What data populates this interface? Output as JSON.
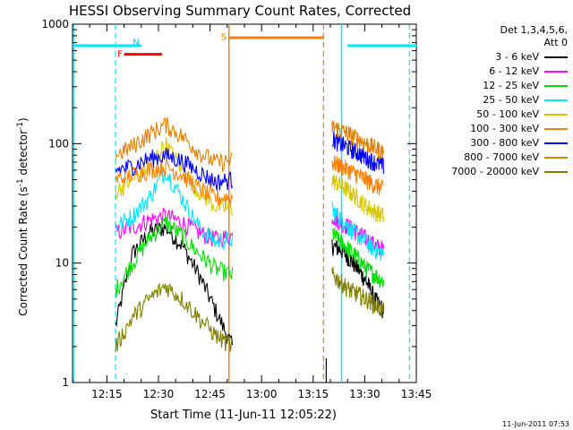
{
  "chart_data": {
    "type": "line",
    "title": "HESSI Observing Summary Count Rates, Corrected",
    "xlabel": "Start Time (11-Jun-11 12:05:22)",
    "ylabel_prefix": "Corrected Count Rate (s",
    "ylabel_sup": "-1",
    "ylabel_mid": " detector",
    "ylabel_sup2": "-1",
    "ylabel_suffix": ")",
    "timestamp": "11-Jun-2011 07:53",
    "yscale": "log",
    "ylim": [
      1,
      1000
    ],
    "xlim_minutes": [
      0,
      100
    ],
    "x_ticks": [
      {
        "t": 10,
        "label": "12:15"
      },
      {
        "t": 25,
        "label": "12:30"
      },
      {
        "t": 40,
        "label": "12:45"
      },
      {
        "t": 55,
        "label": "13:00"
      },
      {
        "t": 70,
        "label": "13:15"
      },
      {
        "t": 85,
        "label": "13:30"
      },
      {
        "t": 100,
        "label": "13:45"
      }
    ],
    "y_ticks": [
      {
        "v": 1,
        "label": "1"
      },
      {
        "v": 10,
        "label": "10"
      },
      {
        "v": 100,
        "label": "100"
      },
      {
        "v": 1000,
        "label": "1000"
      }
    ],
    "legend_title1": "Det 1,3,4,5,6,",
    "legend_title2": "Att 0",
    "series": [
      {
        "name": "3 - 6 keV",
        "color": "#000000"
      },
      {
        "name": "6 - 12 keV",
        "color": "#ff00ff"
      },
      {
        "name": "12 - 25 keV",
        "color": "#00e000"
      },
      {
        "name": "25 - 50 keV",
        "color": "#00e5ff"
      },
      {
        "name": "50 - 100 keV",
        "color": "#d8c800"
      },
      {
        "name": "100 - 300 keV",
        "color": "#ff7f00"
      },
      {
        "name": "300 - 800 keV",
        "color": "#0000ff"
      },
      {
        "name": "800 - 7000 keV",
        "color": "#e08000"
      },
      {
        "name": "7000 - 20000 keV",
        "color": "#808000"
      }
    ],
    "segments": [
      {
        "t0": 12.5,
        "t1": 46.5
      },
      {
        "t0": 75.5,
        "t1": 90.5
      }
    ],
    "series_levels": {
      "3 - 6 keV": {
        "seg1": [
          3,
          12,
          18,
          20,
          14,
          8,
          4,
          2
        ],
        "seg2": [
          14,
          13,
          11,
          9,
          7,
          5,
          4
        ]
      },
      "6 - 12 keV": {
        "seg1": [
          18,
          20,
          23,
          25,
          22,
          18,
          16,
          17
        ],
        "seg2": [
          25,
          22,
          20,
          18,
          16,
          14,
          13
        ]
      },
      "12 - 25 keV": {
        "seg1": [
          6,
          10,
          16,
          22,
          17,
          12,
          9,
          8
        ],
        "seg2": [
          18,
          15,
          13,
          11,
          9,
          8,
          7
        ]
      },
      "25 - 50 keV": {
        "seg1": [
          20,
          25,
          35,
          60,
          35,
          20,
          15,
          16
        ],
        "seg2": [
          28,
          24,
          20,
          17,
          15,
          13,
          12
        ]
      },
      "50 - 100 keV": {
        "seg1": [
          40,
          50,
          65,
          100,
          60,
          40,
          30,
          28
        ],
        "seg2": [
          50,
          45,
          40,
          35,
          30,
          27,
          25
        ]
      },
      "100 - 300 keV": {
        "seg1": [
          50,
          55,
          60,
          65,
          55,
          42,
          35,
          36
        ],
        "seg2": [
          70,
          65,
          60,
          55,
          50,
          45,
          42
        ]
      },
      "300 - 800 keV": {
        "seg1": [
          60,
          65,
          75,
          80,
          72,
          58,
          48,
          50
        ],
        "seg2": [
          110,
          100,
          92,
          84,
          76,
          70,
          65
        ]
      },
      "800 - 7000 keV": {
        "seg1": [
          80,
          95,
          120,
          145,
          115,
          85,
          70,
          72
        ],
        "seg2": [
          140,
          130,
          120,
          110,
          100,
          92,
          86
        ]
      },
      "7000 - 20000 keV": {
        "seg1": [
          2,
          3.5,
          5,
          6.5,
          5,
          3.5,
          2.5,
          2
        ],
        "seg2": [
          8,
          7,
          6,
          5.5,
          5,
          4.5,
          4
        ]
      }
    },
    "markers": {
      "cyan_solid_lines": [
        0,
        78
      ],
      "cyan_dashed_lines": [
        12.5,
        98
      ],
      "orange_solid_line": 45.5,
      "orange_dashed_line": 73,
      "black_line": 73.8,
      "bars": [
        {
          "label": "F",
          "color": "#ff0000",
          "t0": 15,
          "t1": 26,
          "value": 560
        },
        {
          "label": "N",
          "color": "#00e5ff",
          "t0": 0,
          "t1": 20,
          "value": 660
        },
        {
          "label": "S",
          "color": "#ff7f00",
          "t0": 45.5,
          "t1": 73,
          "value": 770
        },
        {
          "label": "",
          "color": "#00e5ff",
          "t0": 80,
          "t1": 100,
          "value": 660
        }
      ],
      "bar_label_values": {
        "F": 560,
        "N": 700,
        "S": 780
      }
    }
  }
}
